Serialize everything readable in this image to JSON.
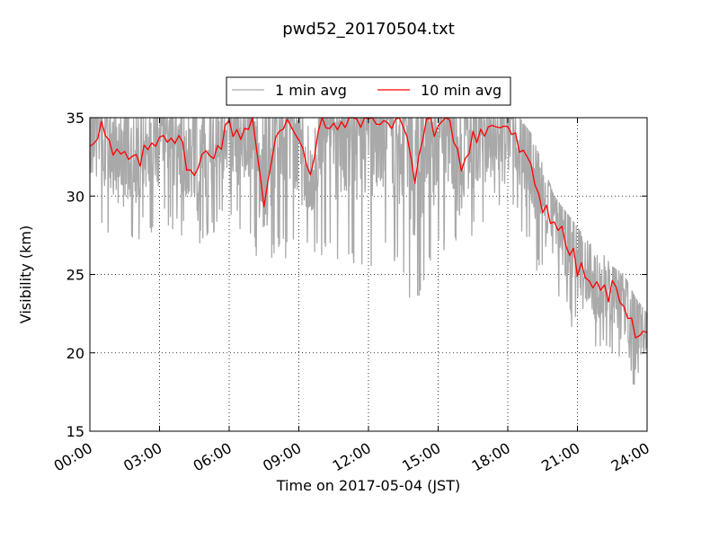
{
  "chart_data": {
    "type": "line",
    "title": "pwd52_20170504.txt",
    "xlabel": "Time on 2017-05-04 (JST)",
    "ylabel": "Visibility (km)",
    "x_ticks": [
      "00:00",
      "03:00",
      "06:00",
      "09:00",
      "12:00",
      "15:00",
      "18:00",
      "21:00",
      "24:00"
    ],
    "y_ticks": [
      "15",
      "20",
      "25",
      "30",
      "35"
    ],
    "xlim": [
      "00:00",
      "24:00"
    ],
    "ylim": [
      15,
      35
    ],
    "grid": true,
    "legend_position": "top-center",
    "series": [
      {
        "name": "1 min avg",
        "color": "#a9a9a9",
        "sampling": "1 min",
        "x_unit": "hours since 00:00",
        "envelope": {
          "x": [
            0,
            1,
            2,
            3,
            4,
            5,
            6,
            7,
            8,
            9,
            10,
            11,
            12,
            13,
            14,
            15,
            16,
            17,
            18,
            18.5,
            19,
            19.5,
            20,
            20.5,
            21,
            21.5,
            22,
            22.5,
            23,
            23.5,
            24
          ],
          "upper": [
            35,
            35,
            35,
            35,
            35,
            35,
            35,
            35,
            35,
            35,
            35,
            35,
            35,
            35,
            35,
            35,
            35,
            35,
            35,
            35,
            34,
            32,
            30,
            29,
            28,
            27,
            26.5,
            25.5,
            25,
            23.5,
            22.5
          ],
          "lower": [
            28,
            27,
            27,
            28,
            27,
            27,
            29,
            26,
            26,
            26,
            26,
            25,
            25,
            26,
            22.5,
            26,
            26,
            28,
            30,
            28,
            26,
            24.5,
            23.5,
            22,
            21,
            20.5,
            19.5,
            19.5,
            18,
            17.5,
            19.5
          ]
        }
      },
      {
        "name": "10 min avg",
        "color": "#ff0000",
        "sampling": "10 min",
        "x_unit": "hours since 00:00",
        "x": [
          0,
          0.5,
          1,
          1.5,
          2,
          2.5,
          3,
          3.5,
          4,
          4.5,
          5,
          5.5,
          6,
          6.5,
          7,
          7.5,
          8,
          8.5,
          9,
          9.5,
          10,
          10.5,
          11,
          11.5,
          12,
          12.5,
          13,
          13.5,
          14,
          14.5,
          15,
          15.5,
          16,
          16.5,
          17,
          17.5,
          18,
          18.5,
          19,
          19.5,
          20,
          20.5,
          21,
          21.5,
          22,
          22.5,
          23,
          23.5,
          24
        ],
        "values": [
          33.5,
          34.5,
          32.5,
          32.5,
          32,
          33,
          34,
          34,
          33,
          31,
          33,
          33,
          34.5,
          34,
          35,
          29,
          34,
          35,
          34,
          31,
          35,
          34,
          35,
          35,
          35,
          35,
          34.5,
          35,
          31,
          35,
          34,
          35,
          32,
          34,
          34,
          34.5,
          34.5,
          33,
          31.5,
          29.5,
          28.5,
          27,
          25.5,
          24.5,
          23.8,
          24,
          23.5,
          21,
          21
        ]
      }
    ]
  }
}
